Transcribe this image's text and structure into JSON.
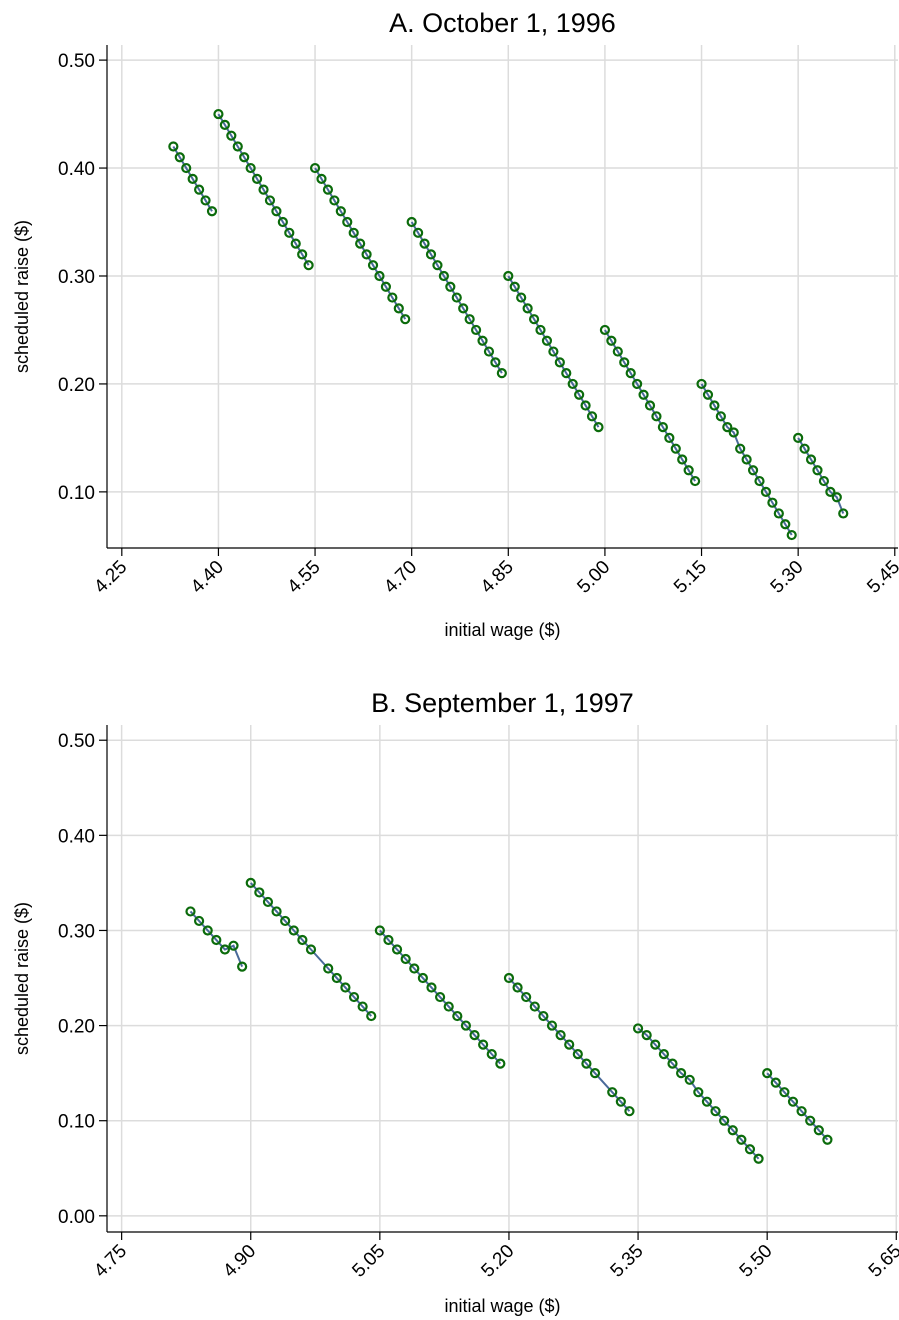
{
  "chart_data": [
    {
      "type": "line",
      "title": "A. October 1, 1996",
      "xlabel": "initial wage ($)",
      "ylabel": "scheduled raise ($)",
      "xlim": [
        4.227,
        5.455
      ],
      "ylim": [
        0.048,
        0.514
      ],
      "grid": true,
      "xticks": [
        4.25,
        {
          "value": 4.4,
          "label": "4.40"
        },
        4.55,
        {
          "value": 4.7,
          "label": "4.70"
        },
        4.85,
        {
          "value": 5.0,
          "label": "5.00"
        },
        5.15,
        {
          "value": 5.3,
          "label": "5.30"
        },
        5.45
      ],
      "yticks": [
        {
          "value": 0.1,
          "label": "0.10"
        },
        {
          "value": 0.2,
          "label": "0.20"
        },
        {
          "value": 0.3,
          "label": "0.30"
        },
        {
          "value": 0.4,
          "label": "0.40"
        },
        {
          "value": 0.5,
          "label": "0.50"
        }
      ],
      "series": [
        {
          "color": "#4a6a9a",
          "marker_color": "#0b6b0b",
          "x": [
            4.33,
            4.34,
            4.35,
            4.36,
            4.37,
            4.38,
            4.39
          ],
          "values": [
            0.42,
            0.41,
            0.4,
            0.39,
            0.38,
            0.37,
            0.36
          ]
        },
        {
          "color": "#4a6a9a",
          "marker_color": "#0b6b0b",
          "x": [
            4.4,
            4.41,
            4.42,
            4.43,
            4.44,
            4.45,
            4.46,
            4.47,
            4.48,
            4.49,
            4.5,
            4.51,
            4.52,
            4.53,
            4.54
          ],
          "values": [
            0.45,
            0.44,
            0.43,
            0.42,
            0.41,
            0.4,
            0.39,
            0.38,
            0.37,
            0.36,
            0.35,
            0.34,
            0.33,
            0.32,
            0.31
          ]
        },
        {
          "color": "#4a6a9a",
          "marker_color": "#0b6b0b",
          "x": [
            4.55,
            4.56,
            4.57,
            4.58,
            4.59,
            4.6,
            4.61,
            4.62,
            4.63,
            4.64,
            4.65,
            4.66,
            4.67,
            4.68,
            4.69
          ],
          "values": [
            0.4,
            0.39,
            0.38,
            0.37,
            0.36,
            0.35,
            0.34,
            0.33,
            0.32,
            0.31,
            0.3,
            0.29,
            0.28,
            0.27,
            0.26
          ]
        },
        {
          "color": "#4a6a9a",
          "marker_color": "#0b6b0b",
          "x": [
            4.7,
            4.71,
            4.72,
            4.73,
            4.74,
            4.75,
            4.76,
            4.77,
            4.78,
            4.79,
            4.8,
            4.81,
            4.82,
            4.83,
            4.84
          ],
          "values": [
            0.35,
            0.34,
            0.33,
            0.32,
            0.31,
            0.3,
            0.29,
            0.28,
            0.27,
            0.26,
            0.25,
            0.24,
            0.23,
            0.22,
            0.21
          ]
        },
        {
          "color": "#4a6a9a",
          "marker_color": "#0b6b0b",
          "x": [
            4.85,
            4.86,
            4.87,
            4.88,
            4.89,
            4.9,
            4.91,
            4.92,
            4.93,
            4.94,
            4.95,
            4.96,
            4.97,
            4.98,
            4.99
          ],
          "values": [
            0.3,
            0.29,
            0.28,
            0.27,
            0.26,
            0.25,
            0.24,
            0.23,
            0.22,
            0.21,
            0.2,
            0.19,
            0.18,
            0.17,
            0.16
          ]
        },
        {
          "color": "#4a6a9a",
          "marker_color": "#0b6b0b",
          "x": [
            5.0,
            5.01,
            5.02,
            5.03,
            5.04,
            5.05,
            5.06,
            5.07,
            5.08,
            5.09,
            5.1,
            5.11,
            5.12,
            5.13,
            5.14
          ],
          "values": [
            0.25,
            0.24,
            0.23,
            0.22,
            0.21,
            0.2,
            0.19,
            0.18,
            0.17,
            0.16,
            0.15,
            0.14,
            0.13,
            0.12,
            0.11
          ]
        },
        {
          "color": "#4a6a9a",
          "marker_color": "#0b6b0b",
          "x": [
            5.15,
            5.16,
            5.17,
            5.18,
            5.19,
            5.2,
            5.21,
            5.22,
            5.23,
            5.24,
            5.25,
            5.26,
            5.27,
            5.28,
            5.29
          ],
          "values": [
            0.2,
            0.19,
            0.18,
            0.17,
            0.16,
            0.155,
            0.14,
            0.13,
            0.12,
            0.11,
            0.1,
            0.09,
            0.08,
            0.07,
            0.06
          ]
        },
        {
          "color": "#4a6a9a",
          "marker_color": "#0b6b0b",
          "x": [
            5.3,
            5.31,
            5.32,
            5.33,
            5.34,
            5.35,
            5.36,
            5.37
          ],
          "values": [
            0.15,
            0.14,
            0.13,
            0.12,
            0.11,
            0.1,
            0.095,
            0.08
          ]
        }
      ]
    },
    {
      "type": "line",
      "title": "B. September 1, 1997",
      "xlabel": "initial wage ($)",
      "ylabel": "scheduled raise ($)",
      "xlim": [
        4.733,
        5.652
      ],
      "ylim": [
        -0.017,
        0.516
      ],
      "grid": true,
      "xticks": [
        4.75,
        {
          "value": 4.9,
          "label": "4.90"
        },
        5.05,
        {
          "value": 5.2,
          "label": "5.20"
        },
        5.35,
        {
          "value": 5.5,
          "label": "5.50"
        },
        5.65
      ],
      "yticks": [
        {
          "value": 0,
          "label": "0.00"
        },
        {
          "value": 0.1,
          "label": "0.10"
        },
        {
          "value": 0.2,
          "label": "0.20"
        },
        {
          "value": 0.3,
          "label": "0.30"
        },
        {
          "value": 0.4,
          "label": "0.40"
        },
        {
          "value": 0.5,
          "label": "0.50"
        }
      ],
      "series": [
        {
          "color": "#4a6a9a",
          "marker_color": "#0b6b0b",
          "x": [
            4.83,
            4.84,
            4.85,
            4.86,
            4.87,
            4.88,
            4.89
          ],
          "values": [
            0.32,
            0.31,
            0.3,
            0.29,
            0.28,
            0.284,
            0.262
          ]
        },
        {
          "color": "#4a6a9a",
          "marker_color": "#0b6b0b",
          "x": [
            4.9,
            4.91,
            4.92,
            4.93,
            4.94,
            4.95,
            4.96,
            4.97,
            4.99,
            5.0,
            5.01,
            5.02,
            5.03,
            5.04
          ],
          "values": [
            0.35,
            0.34,
            0.33,
            0.32,
            0.31,
            0.3,
            0.29,
            0.28,
            0.26,
            0.25,
            0.24,
            0.23,
            0.22,
            0.21
          ]
        },
        {
          "color": "#4a6a9a",
          "marker_color": "#0b6b0b",
          "x": [
            5.05,
            5.06,
            5.07,
            5.08,
            5.09,
            5.1,
            5.11,
            5.12,
            5.13,
            5.14,
            5.15,
            5.16,
            5.17,
            5.18,
            5.19
          ],
          "values": [
            0.3,
            0.29,
            0.28,
            0.27,
            0.26,
            0.25,
            0.24,
            0.23,
            0.22,
            0.21,
            0.2,
            0.19,
            0.18,
            0.17,
            0.16
          ]
        },
        {
          "color": "#4a6a9a",
          "marker_color": "#0b6b0b",
          "x": [
            5.2,
            5.21,
            5.22,
            5.23,
            5.24,
            5.25,
            5.26,
            5.27,
            5.28,
            5.29,
            5.3,
            5.32,
            5.33,
            5.34
          ],
          "values": [
            0.25,
            0.24,
            0.23,
            0.22,
            0.21,
            0.2,
            0.19,
            0.18,
            0.17,
            0.16,
            0.15,
            0.13,
            0.12,
            0.11
          ]
        },
        {
          "color": "#4a6a9a",
          "marker_color": "#0b6b0b",
          "x": [
            5.35,
            5.36,
            5.37,
            5.38,
            5.39,
            5.4,
            5.41,
            5.42,
            5.43,
            5.44,
            5.45,
            5.46,
            5.47,
            5.48,
            5.49
          ],
          "values": [
            0.197,
            0.19,
            0.18,
            0.17,
            0.16,
            0.15,
            0.143,
            0.13,
            0.12,
            0.11,
            0.1,
            0.09,
            0.08,
            0.07,
            0.06
          ]
        },
        {
          "color": "#4a6a9a",
          "marker_color": "#0b6b0b",
          "x": [
            5.5,
            5.51,
            5.52,
            5.53,
            5.54,
            5.55,
            5.56,
            5.57
          ],
          "values": [
            0.15,
            0.14,
            0.13,
            0.12,
            0.11,
            0.1,
            0.09,
            0.08
          ]
        }
      ]
    }
  ]
}
